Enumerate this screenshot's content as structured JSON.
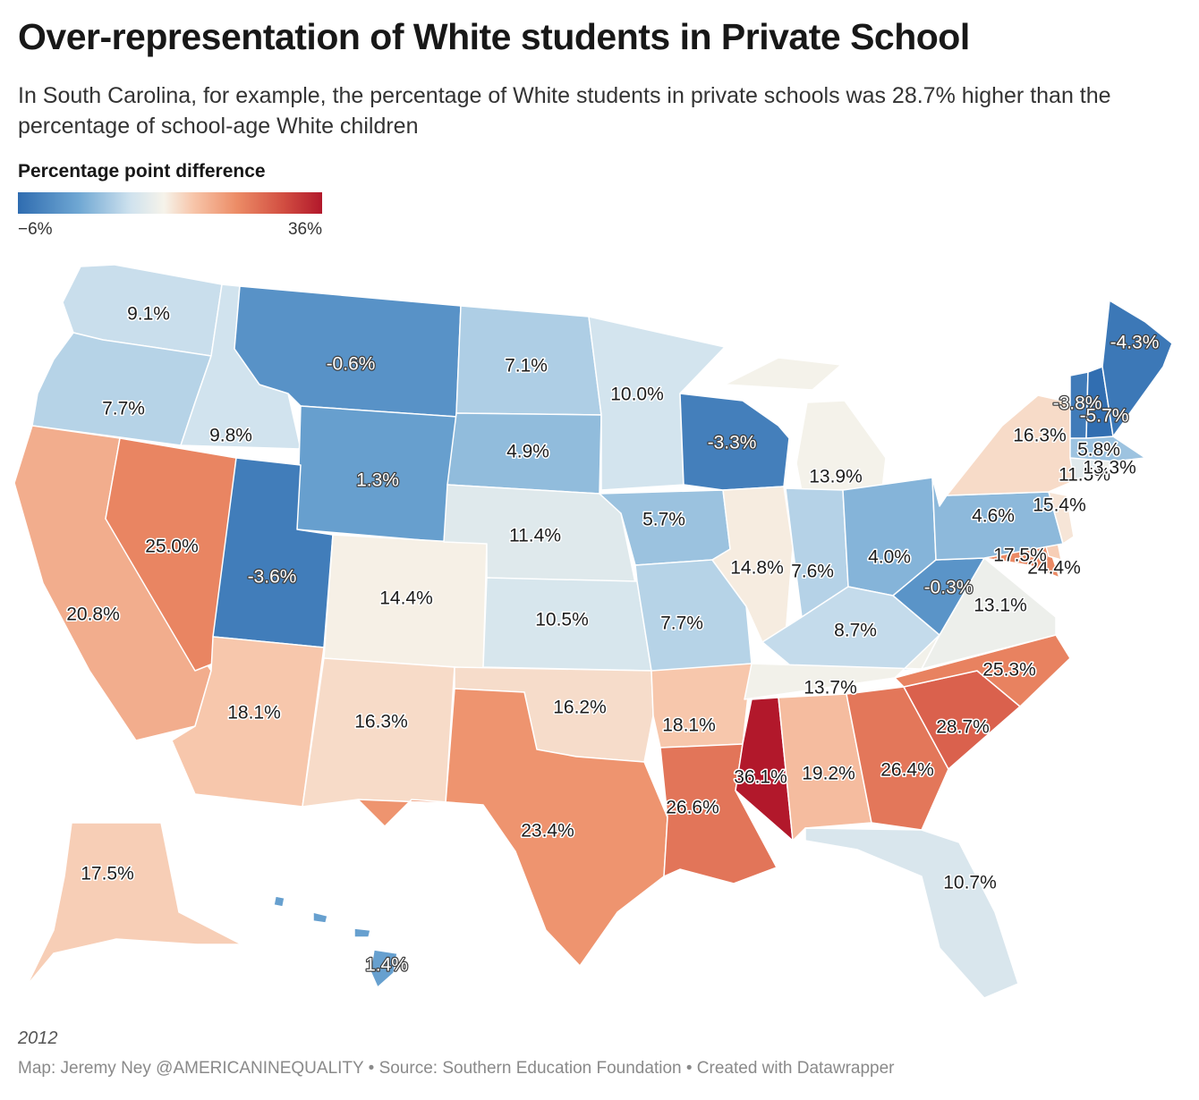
{
  "title": "Over-representation of White students in Private School",
  "subtitle": "In South Carolina, for example, the percentage of White students in private schools was 28.7% higher than the percentage of school-age White children",
  "legend": {
    "title": "Percentage point difference",
    "min_label": "−6%",
    "max_label": "36%",
    "min": -6,
    "max": 36
  },
  "colors": {
    "low": "#2f6cb0",
    "mid": "#f6f3ea",
    "high": "#b2182b"
  },
  "map_data": {
    "type": "choropleth",
    "region": "United States",
    "states": [
      {
        "state": "Washington",
        "value": 9.1,
        "label": "9.1%"
      },
      {
        "state": "Oregon",
        "value": 7.7,
        "label": "7.7%"
      },
      {
        "state": "California",
        "value": 20.8,
        "label": "20.8%"
      },
      {
        "state": "Nevada",
        "value": 25.0,
        "label": "25.0%"
      },
      {
        "state": "Idaho",
        "value": 9.8,
        "label": "9.8%"
      },
      {
        "state": "Montana",
        "value": -0.6,
        "label": "-0.6%"
      },
      {
        "state": "Wyoming",
        "value": 1.3,
        "label": "1.3%"
      },
      {
        "state": "Utah",
        "value": -3.6,
        "label": "-3.6%"
      },
      {
        "state": "Arizona",
        "value": 18.1,
        "label": "18.1%"
      },
      {
        "state": "Colorado",
        "value": 14.4,
        "label": "14.4%"
      },
      {
        "state": "New Mexico",
        "value": 16.3,
        "label": "16.3%"
      },
      {
        "state": "North Dakota",
        "value": 7.1,
        "label": "7.1%"
      },
      {
        "state": "South Dakota",
        "value": 4.9,
        "label": "4.9%"
      },
      {
        "state": "Nebraska",
        "value": 11.4,
        "label": "11.4%"
      },
      {
        "state": "Kansas",
        "value": 10.5,
        "label": "10.5%"
      },
      {
        "state": "Oklahoma",
        "value": 16.2,
        "label": "16.2%"
      },
      {
        "state": "Texas",
        "value": 23.4,
        "label": "23.4%"
      },
      {
        "state": "Minnesota",
        "value": 10.0,
        "label": "10.0%"
      },
      {
        "state": "Iowa",
        "value": 5.7,
        "label": "5.7%"
      },
      {
        "state": "Missouri",
        "value": 7.7,
        "label": "7.7%"
      },
      {
        "state": "Arkansas",
        "value": 18.1,
        "label": "18.1%"
      },
      {
        "state": "Louisiana",
        "value": 26.6,
        "label": "26.6%"
      },
      {
        "state": "Wisconsin",
        "value": -3.3,
        "label": "-3.3%"
      },
      {
        "state": "Illinois",
        "value": 14.8,
        "label": "14.8%"
      },
      {
        "state": "Michigan",
        "value": 13.9,
        "label": "13.9%"
      },
      {
        "state": "Indiana",
        "value": 7.6,
        "label": "7.6%"
      },
      {
        "state": "Ohio",
        "value": 4.0,
        "label": "4.0%"
      },
      {
        "state": "Kentucky",
        "value": 8.7,
        "label": "8.7%"
      },
      {
        "state": "Tennessee",
        "value": 13.7,
        "label": "13.7%"
      },
      {
        "state": "Mississippi",
        "value": 36.1,
        "label": "36.1%"
      },
      {
        "state": "Alabama",
        "value": 19.2,
        "label": "19.2%"
      },
      {
        "state": "Georgia",
        "value": 26.4,
        "label": "26.4%"
      },
      {
        "state": "Florida",
        "value": 10.7,
        "label": "10.7%"
      },
      {
        "state": "South Carolina",
        "value": 28.7,
        "label": "28.7%"
      },
      {
        "state": "North Carolina",
        "value": 25.3,
        "label": "25.3%"
      },
      {
        "state": "Virginia",
        "value": 13.1,
        "label": "13.1%"
      },
      {
        "state": "West Virginia",
        "value": -0.3,
        "label": "-0.3%"
      },
      {
        "state": "Maryland",
        "value": 24.4,
        "label": "24.4%"
      },
      {
        "state": "Delaware",
        "value": 17.5,
        "label": "17.5%"
      },
      {
        "state": "Pennsylvania",
        "value": 4.6,
        "label": "4.6%"
      },
      {
        "state": "New Jersey",
        "value": 15.4,
        "label": "15.4%"
      },
      {
        "state": "New York",
        "value": 16.3,
        "label": "16.3%"
      },
      {
        "state": "Connecticut",
        "value": 11.5,
        "label": "11.5%"
      },
      {
        "state": "Rhode Island",
        "value": 13.3,
        "label": "13.3%"
      },
      {
        "state": "Massachusetts",
        "value": 5.8,
        "label": "5.8%"
      },
      {
        "state": "Vermont",
        "value": -3.8,
        "label": "-3.8%"
      },
      {
        "state": "New Hampshire",
        "value": -5.7,
        "label": "-5.7%"
      },
      {
        "state": "Maine",
        "value": -4.3,
        "label": "-4.3%"
      },
      {
        "state": "Alaska",
        "value": 17.5,
        "label": "17.5%"
      },
      {
        "state": "Hawaii",
        "value": 1.4,
        "label": "1.4%"
      }
    ]
  },
  "year": "2012",
  "credit": "Map: Jeremy Ney @AMERICANINEQUALITY • Source: Southern Education Foundation • Created with Datawrapper"
}
